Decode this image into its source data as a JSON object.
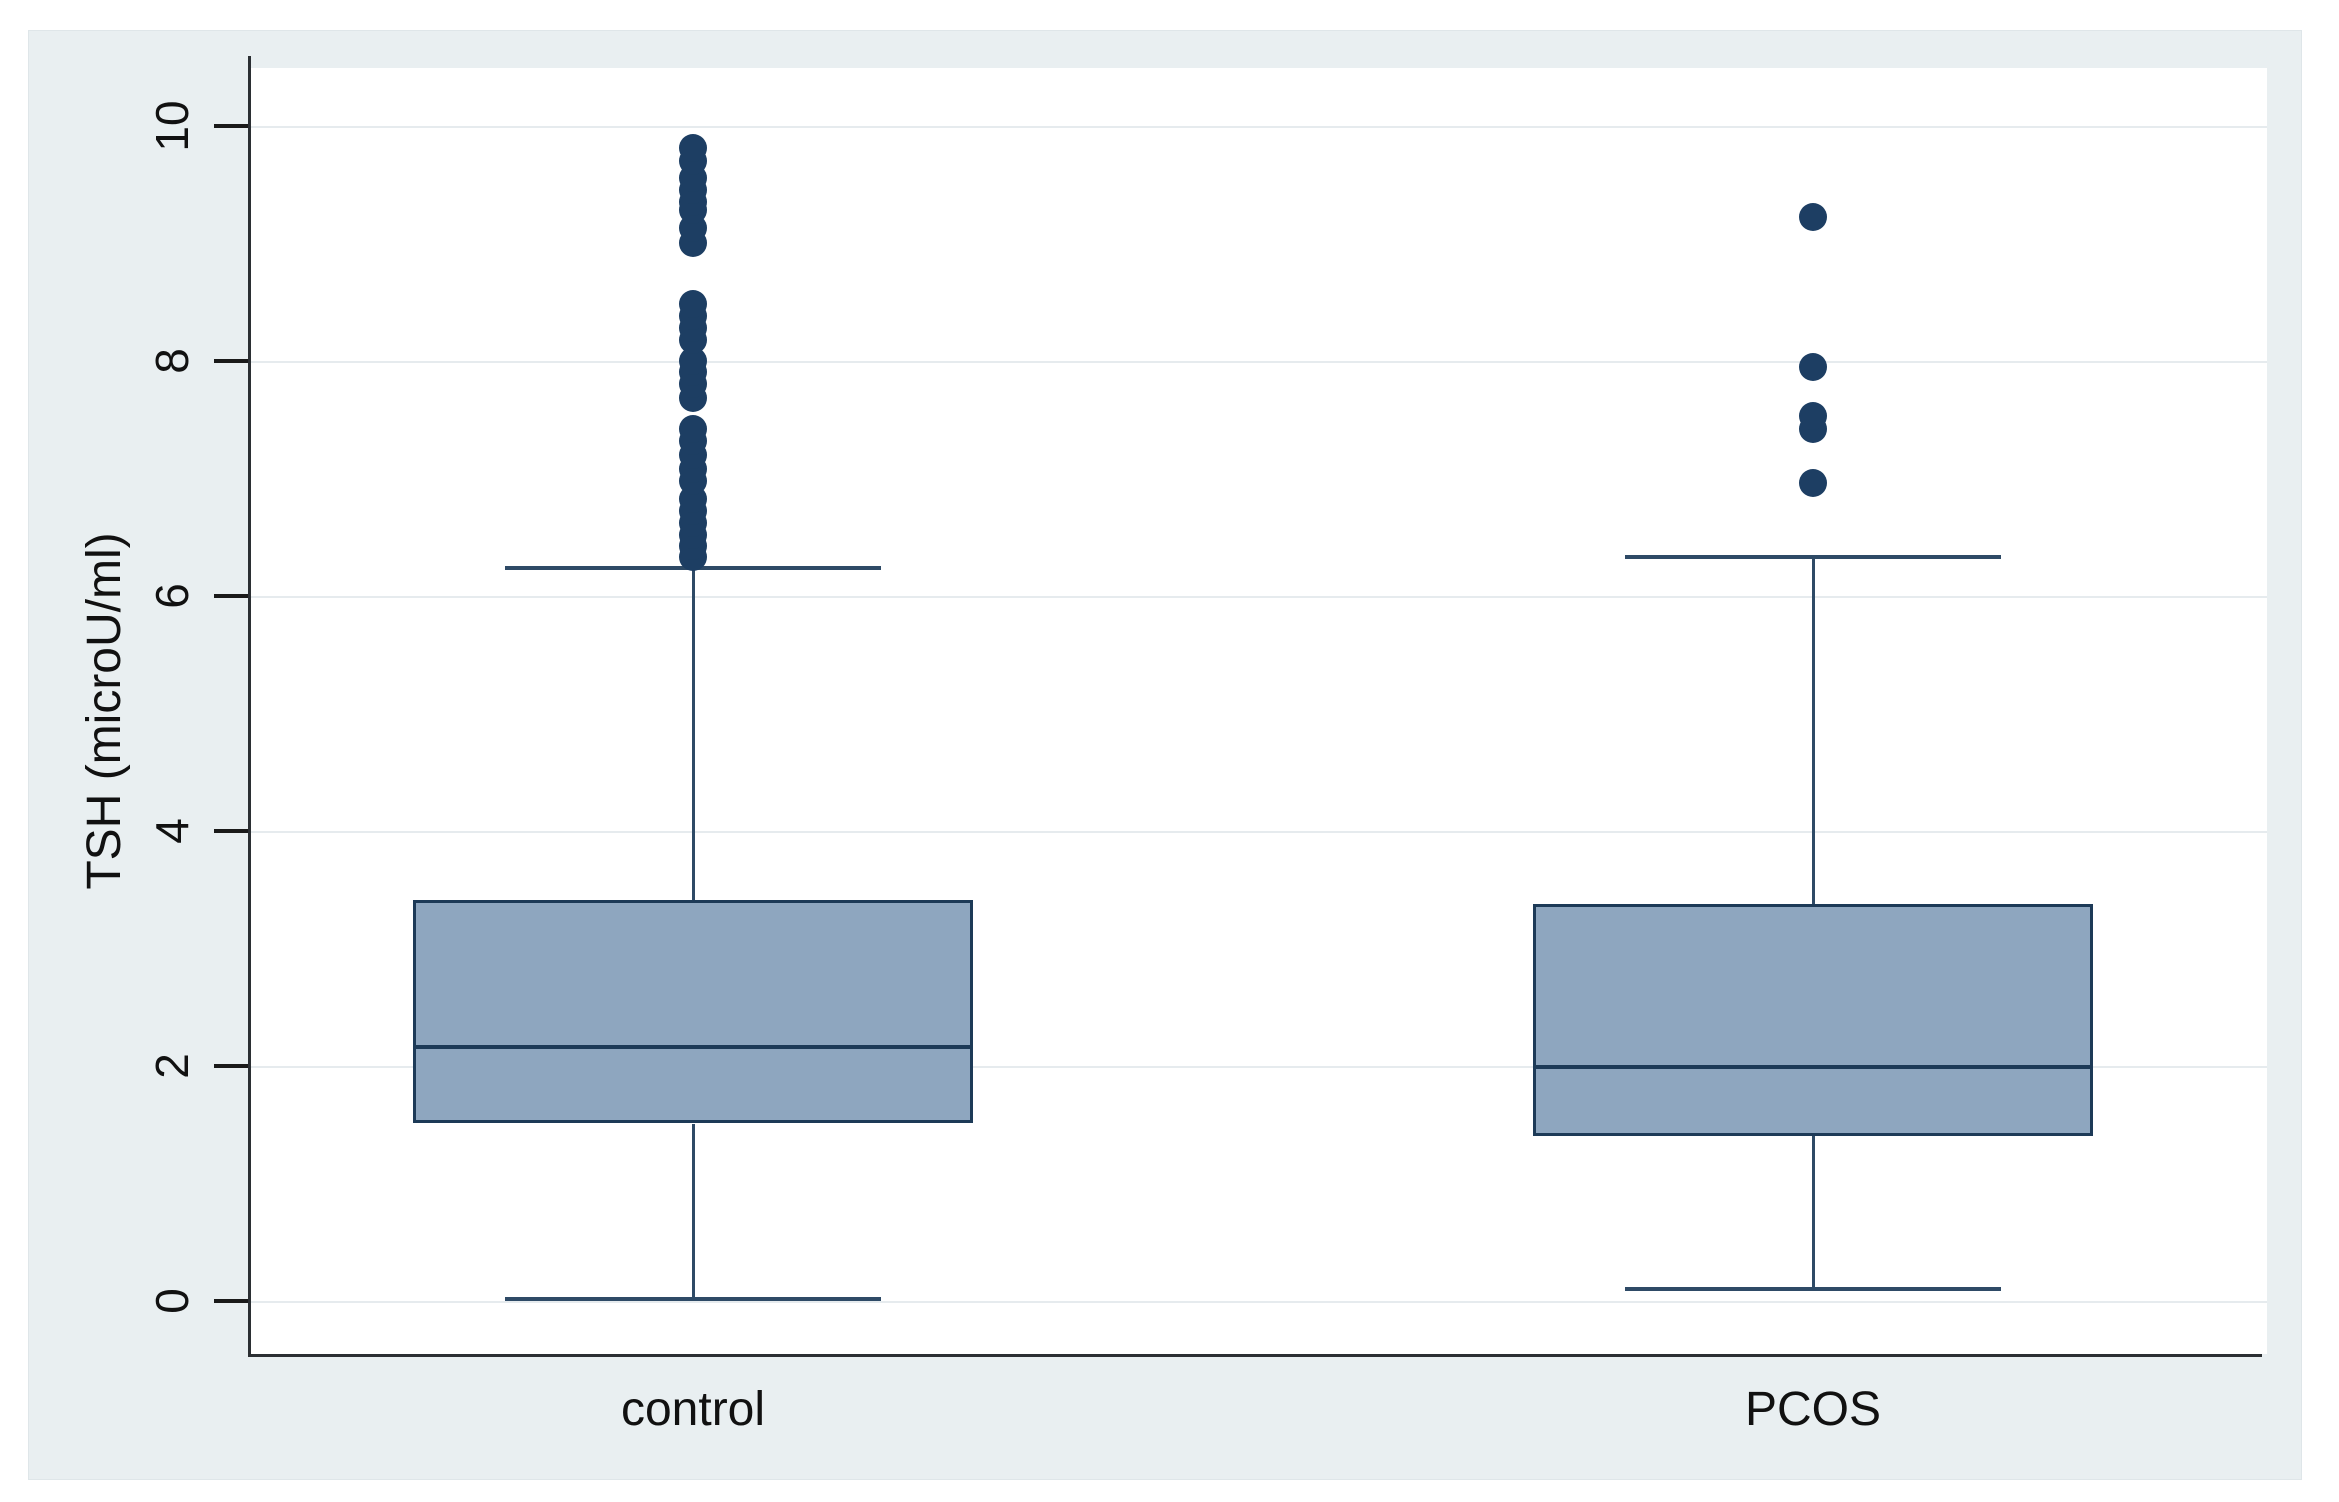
{
  "figure": {
    "kind": "stata-style-boxplot-figure",
    "outer_background": "#ffffff",
    "graph_background": "#e9eff1",
    "plot_background": "#ffffff",
    "axis_color": "#2b2f33",
    "gridline_color": "#e6ebee",
    "text_color": "#111111"
  },
  "chart_data": {
    "type": "boxplot",
    "title": "",
    "xlabel": "",
    "ylabel": "TSH (microU/ml)",
    "yticks": [
      0,
      2,
      4,
      6,
      8,
      10
    ],
    "ytick_labels": [
      "0",
      "2",
      "4",
      "6",
      "8",
      "10"
    ],
    "ylim": [
      -0.45,
      10.49
    ],
    "grid": true,
    "tick_label_rotation_deg": -90,
    "categories": [
      "control",
      "PCOS"
    ],
    "series": [
      {
        "name": "control",
        "q1": 1.51,
        "median": 2.16,
        "q3": 3.41,
        "whisker_low": 0.02,
        "whisker_high": 6.24,
        "outliers": [
          6.33,
          6.42,
          6.52,
          6.62,
          6.72,
          6.82,
          6.98,
          7.08,
          7.2,
          7.32,
          7.42,
          7.68,
          7.8,
          7.9,
          8.0,
          8.18,
          8.28,
          8.38,
          8.48,
          9.0,
          9.13,
          9.28,
          9.35,
          9.45,
          9.55,
          9.7,
          9.81
        ]
      },
      {
        "name": "PCOS",
        "q1": 1.41,
        "median": 1.99,
        "q3": 3.38,
        "whisker_low": 0.1,
        "whisker_high": 6.33,
        "outliers": [
          6.96,
          7.42,
          7.53,
          7.95,
          9.22
        ]
      }
    ],
    "colors": {
      "box_fill": "#8ea6bf",
      "box_border": "#1d3a57",
      "median": "#1d3a57",
      "whisker": "#2e4a66",
      "outlier": "#1d3e63"
    }
  }
}
